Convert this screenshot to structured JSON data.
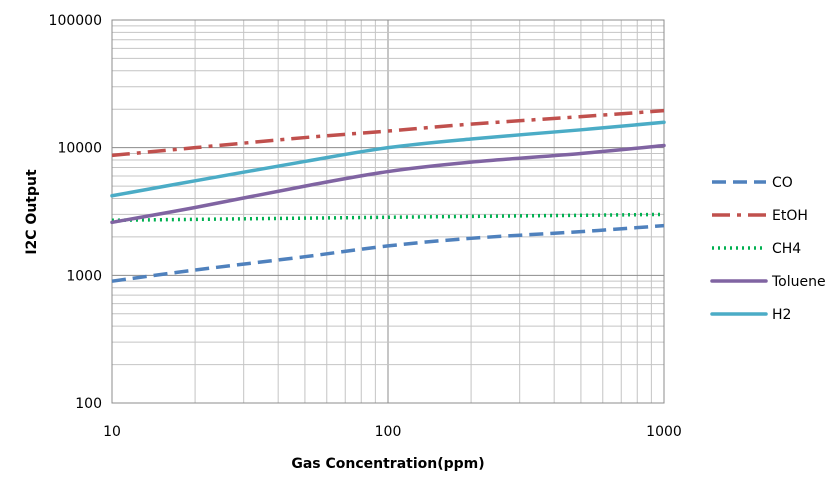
{
  "chart_data": {
    "type": "line",
    "title": "",
    "xlabel": "Gas Concentration(ppm)",
    "ylabel": "I2C Output",
    "xscale": "log",
    "yscale": "log",
    "xlim": [
      10,
      1000
    ],
    "ylim": [
      100,
      100000
    ],
    "x_ticks": [
      {
        "value": 10,
        "label": "10"
      },
      {
        "value": 100,
        "label": "100"
      },
      {
        "value": 1000,
        "label": "1000"
      }
    ],
    "y_ticks": [
      {
        "value": 100,
        "label": "100"
      },
      {
        "value": 1000,
        "label": "1000"
      },
      {
        "value": 10000,
        "label": "10000"
      },
      {
        "value": 100000,
        "label": "100000"
      }
    ],
    "grid": true,
    "legend_position": "right",
    "series": [
      {
        "name": "CO",
        "color": "#4F81BD",
        "style": "dash",
        "x": [
          10,
          20,
          50,
          100,
          200,
          500,
          1000
        ],
        "y": [
          900,
          1100,
          1400,
          1700,
          1950,
          2200,
          2450
        ]
      },
      {
        "name": "EtOH",
        "color": "#C0504D",
        "style": "dash-dot",
        "x": [
          10,
          20,
          50,
          100,
          200,
          500,
          1000
        ],
        "y": [
          8700,
          10000,
          12000,
          13500,
          15300,
          17500,
          19500
        ]
      },
      {
        "name": "CH4",
        "color": "#00B050",
        "style": "dot",
        "x": [
          10,
          100,
          1000
        ],
        "y": [
          2700,
          2850,
          3000
        ]
      },
      {
        "name": "Toluene",
        "color": "#8064A2",
        "style": "solid",
        "x": [
          10,
          20,
          50,
          100,
          200,
          500,
          1000
        ],
        "y": [
          2600,
          3400,
          5000,
          6500,
          7700,
          9000,
          10400
        ]
      },
      {
        "name": "H2",
        "color": "#4BACC6",
        "style": "solid",
        "x": [
          10,
          20,
          50,
          100,
          200,
          500,
          1000
        ],
        "y": [
          4200,
          5500,
          7800,
          10000,
          11700,
          13800,
          15800
        ]
      }
    ]
  }
}
